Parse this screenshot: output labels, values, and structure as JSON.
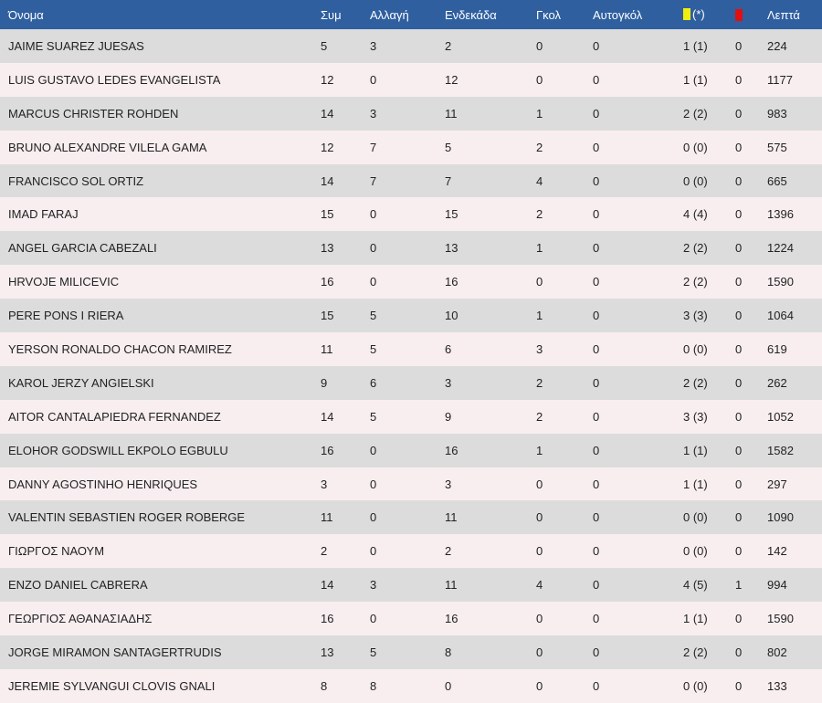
{
  "colors": {
    "header_bg": "#2f5f9f",
    "row_odd": "#dcdcdc",
    "row_even": "#f8eef0",
    "yellow_card": "#f1ee0d",
    "red_card": "#e11010"
  },
  "header": {
    "name": "Όνομα",
    "apps": "Συμ",
    "sub": "Αλλαγή",
    "starting": "Ενδεκάδα",
    "goals": "Γκολ",
    "own_goals": "Αυτογκόλ",
    "yellow_icon": "yellow-card-icon",
    "yellow_suffix": "(*)",
    "red_icon": "red-card-icon",
    "minutes": "Λεπτά"
  },
  "rows": [
    {
      "name": "JAIME SUAREZ JUESAS",
      "apps": "5",
      "sub": "3",
      "starting": "2",
      "goals": "0",
      "own_goals": "0",
      "yellow": "1 (1)",
      "red": "0",
      "minutes": "224"
    },
    {
      "name": "LUIS GUSTAVO LEDES EVANGELISTA",
      "apps": "12",
      "sub": "0",
      "starting": "12",
      "goals": "0",
      "own_goals": "0",
      "yellow": "1 (1)",
      "red": "0",
      "minutes": "1177"
    },
    {
      "name": "MARCUS CHRISTER ROHDEN",
      "apps": "14",
      "sub": "3",
      "starting": "11",
      "goals": "1",
      "own_goals": "0",
      "yellow": "2 (2)",
      "red": "0",
      "minutes": "983"
    },
    {
      "name": "BRUNO ALEXANDRE VILELA GAMA",
      "apps": "12",
      "sub": "7",
      "starting": "5",
      "goals": "2",
      "own_goals": "0",
      "yellow": "0 (0)",
      "red": "0",
      "minutes": "575"
    },
    {
      "name": "FRANCISCO SOL ORTIZ",
      "apps": "14",
      "sub": "7",
      "starting": "7",
      "goals": "4",
      "own_goals": "0",
      "yellow": "0 (0)",
      "red": "0",
      "minutes": "665"
    },
    {
      "name": "IMAD FARAJ",
      "apps": "15",
      "sub": "0",
      "starting": "15",
      "goals": "2",
      "own_goals": "0",
      "yellow": "4 (4)",
      "red": "0",
      "minutes": "1396"
    },
    {
      "name": "ANGEL GARCIA CABEZALI",
      "apps": "13",
      "sub": "0",
      "starting": "13",
      "goals": "1",
      "own_goals": "0",
      "yellow": "2 (2)",
      "red": "0",
      "minutes": "1224"
    },
    {
      "name": "HRVOJE MILICEVIC",
      "apps": "16",
      "sub": "0",
      "starting": "16",
      "goals": "0",
      "own_goals": "0",
      "yellow": "2 (2)",
      "red": "0",
      "minutes": "1590"
    },
    {
      "name": "PERE PONS I RIERA",
      "apps": "15",
      "sub": "5",
      "starting": "10",
      "goals": "1",
      "own_goals": "0",
      "yellow": "3 (3)",
      "red": "0",
      "minutes": "1064"
    },
    {
      "name": "YERSON RONALDO CHACON RAMIREZ",
      "apps": "11",
      "sub": "5",
      "starting": "6",
      "goals": "3",
      "own_goals": "0",
      "yellow": "0 (0)",
      "red": "0",
      "minutes": "619"
    },
    {
      "name": "KAROL JERZY ANGIELSKI",
      "apps": "9",
      "sub": "6",
      "starting": "3",
      "goals": "2",
      "own_goals": "0",
      "yellow": "2 (2)",
      "red": "0",
      "minutes": "262"
    },
    {
      "name": "AITOR CANTALAPIEDRA FERNANDEZ",
      "apps": "14",
      "sub": "5",
      "starting": "9",
      "goals": "2",
      "own_goals": "0",
      "yellow": "3 (3)",
      "red": "0",
      "minutes": "1052"
    },
    {
      "name": "ELOHOR GODSWILL EKPOLO EGBULU",
      "apps": "16",
      "sub": "0",
      "starting": "16",
      "goals": "1",
      "own_goals": "0",
      "yellow": "1 (1)",
      "red": "0",
      "minutes": "1582"
    },
    {
      "name": "DANNY AGOSTINHO HENRIQUES",
      "apps": "3",
      "sub": "0",
      "starting": "3",
      "goals": "0",
      "own_goals": "0",
      "yellow": "1 (1)",
      "red": "0",
      "minutes": "297"
    },
    {
      "name": "VALENTIN SEBASTIEN ROGER ROBERGE",
      "apps": "11",
      "sub": "0",
      "starting": "11",
      "goals": "0",
      "own_goals": "0",
      "yellow": "0 (0)",
      "red": "0",
      "minutes": "1090"
    },
    {
      "name": "ΓΙΩΡΓΟΣ ΝΑΟΥΜ",
      "apps": "2",
      "sub": "0",
      "starting": "2",
      "goals": "0",
      "own_goals": "0",
      "yellow": "0 (0)",
      "red": "0",
      "minutes": "142"
    },
    {
      "name": "ENZO DANIEL CABRERA",
      "apps": "14",
      "sub": "3",
      "starting": "11",
      "goals": "4",
      "own_goals": "0",
      "yellow": "4 (5)",
      "red": "1",
      "minutes": "994"
    },
    {
      "name": "ΓΕΩΡΓΙΟΣ ΑΘΑΝΑΣΙΑΔΗΣ",
      "apps": "16",
      "sub": "0",
      "starting": "16",
      "goals": "0",
      "own_goals": "0",
      "yellow": "1 (1)",
      "red": "0",
      "minutes": "1590"
    },
    {
      "name": "JORGE MIRAMON SANTAGERTRUDIS",
      "apps": "13",
      "sub": "5",
      "starting": "8",
      "goals": "0",
      "own_goals": "0",
      "yellow": "2 (2)",
      "red": "0",
      "minutes": "802"
    },
    {
      "name": "JEREMIE SYLVANGUI CLOVIS GNALI",
      "apps": "8",
      "sub": "8",
      "starting": "0",
      "goals": "0",
      "own_goals": "0",
      "yellow": "0 (0)",
      "red": "0",
      "minutes": "133"
    }
  ]
}
